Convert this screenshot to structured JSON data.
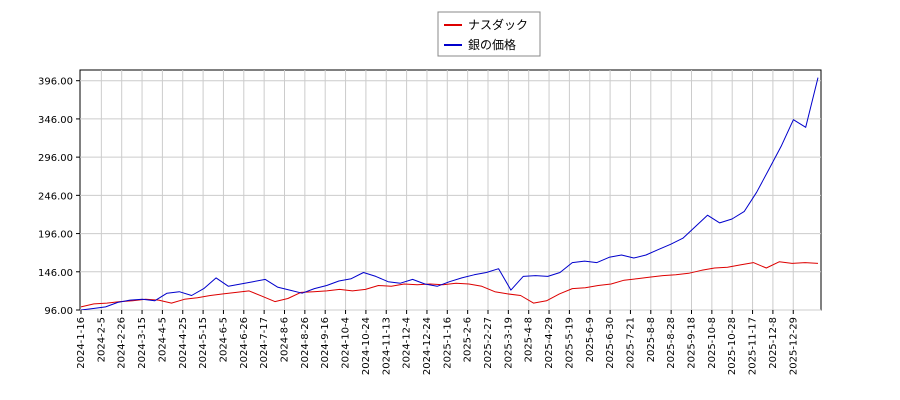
{
  "chart_data": {
    "type": "line",
    "title": "",
    "xlabel": "",
    "ylabel": "",
    "ylim": [
      96.0,
      410.0
    ],
    "grid": true,
    "legend_position": "top-center",
    "x_tick_labels": [
      "2024-1-16",
      "2024-2-5",
      "2024-2-26",
      "2024-3-15",
      "2024-4-5",
      "2024-4-25",
      "2024-5-15",
      "2024-6-5",
      "2024-6-26",
      "2024-7-17",
      "2024-8-6",
      "2024-8-26",
      "2024-9-16",
      "2024-10-4",
      "2024-10-24",
      "2024-11-13",
      "2024-12-4",
      "2024-12-24",
      "2025-1-16",
      "2025-2-6",
      "2025-2-27",
      "2025-3-19",
      "2025-4-8",
      "2025-4-29",
      "2025-5-19",
      "2025-6-9",
      "2025-6-30",
      "2025-7-21",
      "2025-8-8",
      "2025-8-28",
      "2025-9-18",
      "2025-10-8",
      "2025-10-28",
      "2025-11-17",
      "2025-12-8",
      "2025-12-29"
    ],
    "y_tick_labels": [
      "96.00",
      "146.00",
      "196.00",
      "246.00",
      "296.00",
      "346.00",
      "396.00"
    ],
    "y_tick_values": [
      96,
      146,
      196,
      246,
      296,
      346,
      396
    ],
    "series": [
      {
        "name": "ナスダック",
        "color": "#dd0000",
        "values": [
          100,
          104,
          105,
          107,
          108,
          110,
          109,
          105,
          110,
          112,
          115,
          117,
          119,
          121,
          114,
          107,
          111,
          119,
          120,
          121,
          123,
          121,
          123,
          128,
          127,
          130,
          129,
          130,
          129,
          131,
          130,
          127,
          120,
          117,
          115,
          105,
          108,
          117,
          124,
          125,
          128,
          130,
          135,
          137,
          139,
          141,
          142,
          144,
          148,
          151,
          152,
          155,
          158,
          151,
          159,
          157,
          158,
          157
        ]
      },
      {
        "name": "銀の価格",
        "color": "#0000cc",
        "values": [
          96,
          98,
          100,
          106,
          109,
          110,
          108,
          118,
          120,
          115,
          124,
          138,
          127,
          130,
          133,
          136,
          126,
          122,
          118,
          124,
          128,
          134,
          137,
          145,
          140,
          133,
          131,
          136,
          130,
          127,
          133,
          138,
          142,
          145,
          150,
          122,
          140,
          141,
          140,
          145,
          158,
          160,
          158,
          165,
          168,
          164,
          168,
          175,
          182,
          190,
          205,
          220,
          210,
          215,
          225,
          250,
          280,
          310,
          345,
          335,
          400
        ]
      }
    ]
  }
}
